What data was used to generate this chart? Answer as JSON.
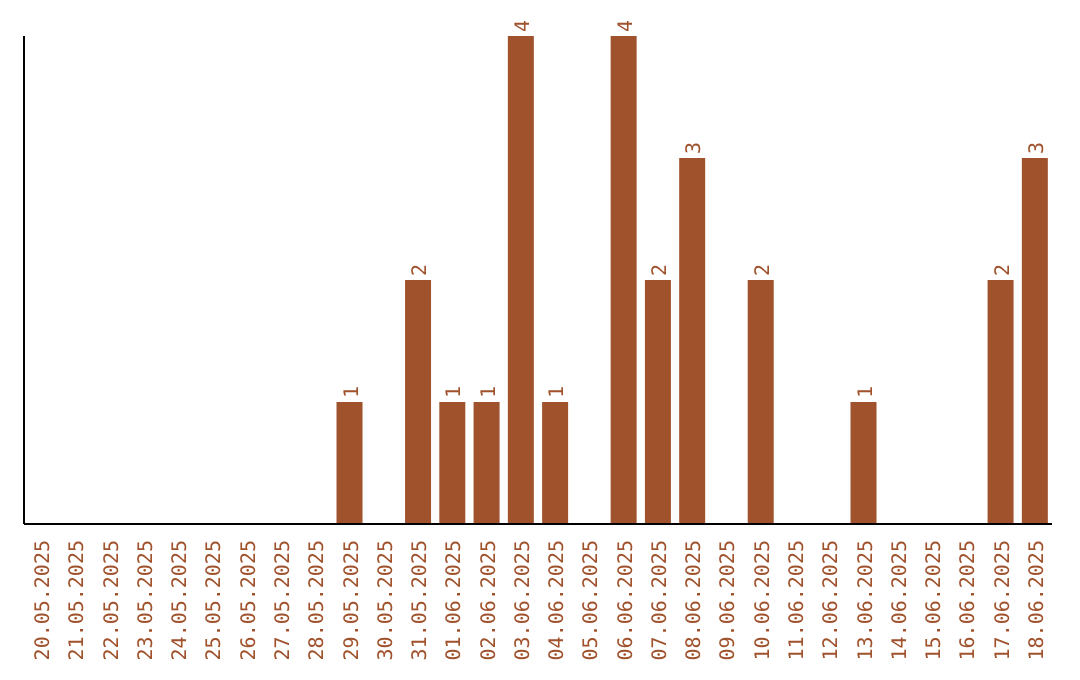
{
  "chart_data": {
    "type": "bar",
    "categories": [
      "20.05.2025",
      "21.05.2025",
      "22.05.2025",
      "23.05.2025",
      "24.05.2025",
      "25.05.2025",
      "26.05.2025",
      "27.05.2025",
      "28.05.2025",
      "29.05.2025",
      "30.05.2025",
      "31.05.2025",
      "01.06.2025",
      "02.06.2025",
      "03.06.2025",
      "04.06.2025",
      "05.06.2025",
      "06.06.2025",
      "07.06.2025",
      "08.06.2025",
      "09.06.2025",
      "10.06.2025",
      "11.06.2025",
      "12.06.2025",
      "13.06.2025",
      "14.06.2025",
      "15.06.2025",
      "16.06.2025",
      "17.06.2025",
      "18.06.2025"
    ],
    "values": [
      0,
      0,
      0,
      0,
      0,
      0,
      0,
      0,
      0,
      1,
      0,
      2,
      1,
      1,
      4,
      1,
      0,
      4,
      2,
      3,
      0,
      2,
      0,
      0,
      1,
      0,
      0,
      0,
      2,
      3
    ],
    "value_labels": [
      null,
      null,
      null,
      null,
      null,
      null,
      null,
      null,
      null,
      "1",
      null,
      "2",
      "1",
      "1",
      "4",
      "1",
      null,
      "4",
      "2",
      "3",
      null,
      "2",
      null,
      null,
      "1",
      null,
      null,
      null,
      "2",
      "3"
    ],
    "color": "#a0522d",
    "ylim": [
      0,
      4
    ],
    "tick_labels": "x"
  }
}
